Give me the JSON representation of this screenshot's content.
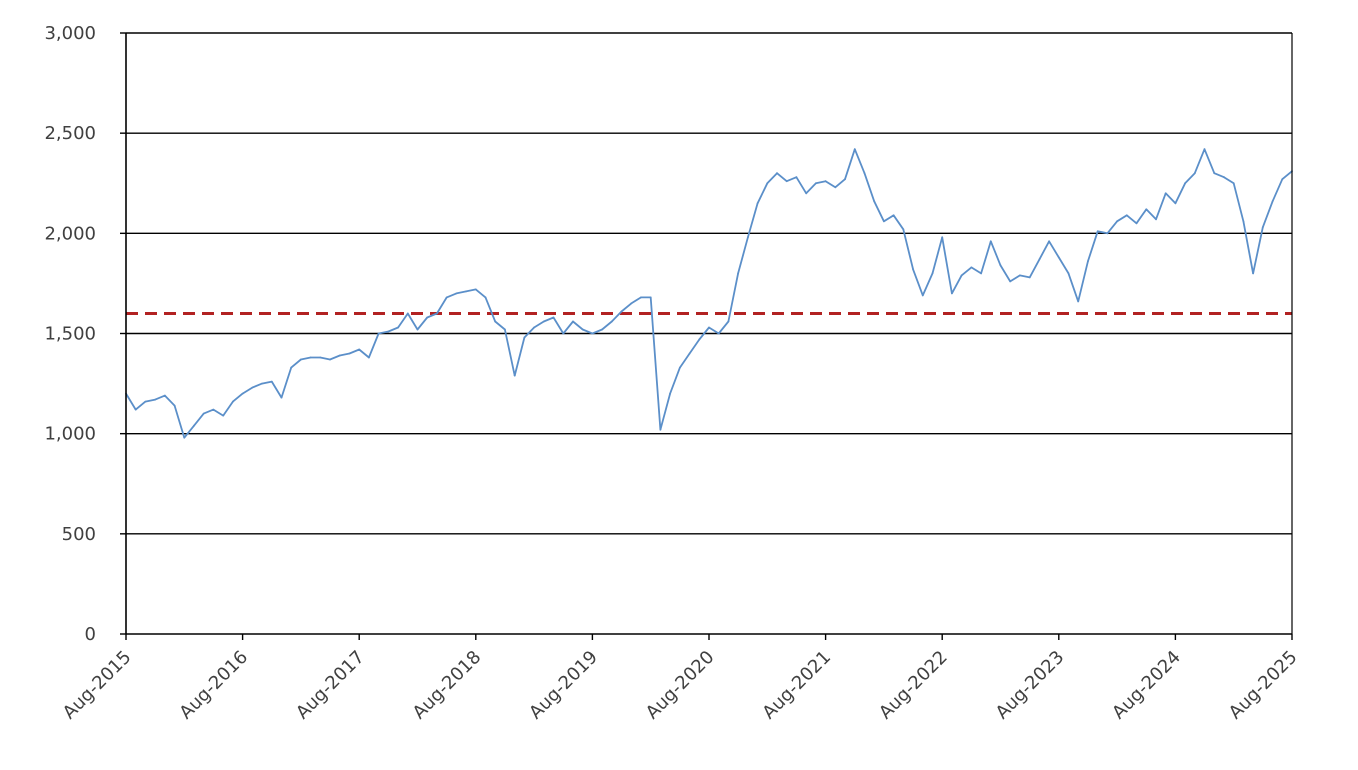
{
  "chart_data": {
    "type": "line",
    "title": "",
    "xlabel": "",
    "ylabel": "",
    "ylim": [
      0,
      3000
    ],
    "yticks": [
      0,
      500,
      1000,
      1500,
      2000,
      2500,
      3000
    ],
    "ytick_labels": [
      "0",
      "500",
      "1,000",
      "1,500",
      "2,000",
      "2,500",
      "3,000"
    ],
    "xlim": [
      "2015-08",
      "2025-08"
    ],
    "xtick_labels": [
      "Aug-2015",
      "Aug-2016",
      "Aug-2017",
      "Aug-2018",
      "Aug-2019",
      "Aug-2020",
      "Aug-2021",
      "Aug-2022",
      "Aug-2023",
      "Aug-2024",
      "Aug-2025"
    ],
    "grid": "horizontal",
    "legend": "none",
    "colors": {
      "series": "#5b8fc9",
      "reference": "#b22222",
      "grid": "#000000"
    },
    "reference_line": {
      "value": 1600,
      "style": "dashed"
    },
    "series": [
      {
        "points": [
          [
            "2015-08",
            1200
          ],
          [
            "2015-09",
            1120
          ],
          [
            "2015-10",
            1160
          ],
          [
            "2015-11",
            1170
          ],
          [
            "2015-12",
            1190
          ],
          [
            "2016-01",
            1140
          ],
          [
            "2016-02",
            980
          ],
          [
            "2016-03",
            1040
          ],
          [
            "2016-04",
            1100
          ],
          [
            "2016-05",
            1120
          ],
          [
            "2016-06",
            1090
          ],
          [
            "2016-07",
            1160
          ],
          [
            "2016-08",
            1200
          ],
          [
            "2016-09",
            1230
          ],
          [
            "2016-10",
            1250
          ],
          [
            "2016-11",
            1260
          ],
          [
            "2016-12",
            1180
          ],
          [
            "2017-01",
            1330
          ],
          [
            "2017-02",
            1370
          ],
          [
            "2017-03",
            1380
          ],
          [
            "2017-04",
            1380
          ],
          [
            "2017-05",
            1370
          ],
          [
            "2017-06",
            1390
          ],
          [
            "2017-07",
            1400
          ],
          [
            "2017-08",
            1420
          ],
          [
            "2017-09",
            1380
          ],
          [
            "2017-10",
            1500
          ],
          [
            "2017-11",
            1510
          ],
          [
            "2017-12",
            1530
          ],
          [
            "2018-01",
            1600
          ],
          [
            "2018-02",
            1520
          ],
          [
            "2018-03",
            1580
          ],
          [
            "2018-04",
            1600
          ],
          [
            "2018-05",
            1680
          ],
          [
            "2018-06",
            1700
          ],
          [
            "2018-07",
            1710
          ],
          [
            "2018-08",
            1720
          ],
          [
            "2018-09",
            1680
          ],
          [
            "2018-10",
            1560
          ],
          [
            "2018-11",
            1520
          ],
          [
            "2018-12",
            1290
          ],
          [
            "2019-01",
            1480
          ],
          [
            "2019-02",
            1530
          ],
          [
            "2019-03",
            1560
          ],
          [
            "2019-04",
            1580
          ],
          [
            "2019-05",
            1500
          ],
          [
            "2019-06",
            1560
          ],
          [
            "2019-07",
            1520
          ],
          [
            "2019-08",
            1500
          ],
          [
            "2019-09",
            1520
          ],
          [
            "2019-10",
            1560
          ],
          [
            "2019-11",
            1610
          ],
          [
            "2019-12",
            1650
          ],
          [
            "2020-01",
            1680
          ],
          [
            "2020-02",
            1680
          ],
          [
            "2020-03",
            1020
          ],
          [
            "2020-04",
            1200
          ],
          [
            "2020-05",
            1330
          ],
          [
            "2020-06",
            1400
          ],
          [
            "2020-07",
            1470
          ],
          [
            "2020-08",
            1530
          ],
          [
            "2020-09",
            1500
          ],
          [
            "2020-10",
            1560
          ],
          [
            "2020-11",
            1800
          ],
          [
            "2020-12",
            1980
          ],
          [
            "2021-01",
            2150
          ],
          [
            "2021-02",
            2250
          ],
          [
            "2021-03",
            2300
          ],
          [
            "2021-04",
            2260
          ],
          [
            "2021-05",
            2280
          ],
          [
            "2021-06",
            2200
          ],
          [
            "2021-07",
            2250
          ],
          [
            "2021-08",
            2260
          ],
          [
            "2021-09",
            2230
          ],
          [
            "2021-10",
            2270
          ],
          [
            "2021-11",
            2420
          ],
          [
            "2021-12",
            2300
          ],
          [
            "2022-01",
            2160
          ],
          [
            "2022-02",
            2060
          ],
          [
            "2022-03",
            2090
          ],
          [
            "2022-04",
            2020
          ],
          [
            "2022-05",
            1820
          ],
          [
            "2022-06",
            1690
          ],
          [
            "2022-07",
            1800
          ],
          [
            "2022-08",
            1980
          ],
          [
            "2022-09",
            1700
          ],
          [
            "2022-10",
            1790
          ],
          [
            "2022-11",
            1830
          ],
          [
            "2022-12",
            1800
          ],
          [
            "2023-01",
            1960
          ],
          [
            "2023-02",
            1840
          ],
          [
            "2023-03",
            1760
          ],
          [
            "2023-04",
            1790
          ],
          [
            "2023-05",
            1780
          ],
          [
            "2023-06",
            1870
          ],
          [
            "2023-07",
            1960
          ],
          [
            "2023-08",
            1880
          ],
          [
            "2023-09",
            1800
          ],
          [
            "2023-10",
            1660
          ],
          [
            "2023-11",
            1860
          ],
          [
            "2023-12",
            2010
          ],
          [
            "2024-01",
            2000
          ],
          [
            "2024-02",
            2060
          ],
          [
            "2024-03",
            2090
          ],
          [
            "2024-04",
            2050
          ],
          [
            "2024-05",
            2120
          ],
          [
            "2024-06",
            2070
          ],
          [
            "2024-07",
            2200
          ],
          [
            "2024-08",
            2150
          ],
          [
            "2024-09",
            2250
          ],
          [
            "2024-10",
            2300
          ],
          [
            "2024-11",
            2420
          ],
          [
            "2024-12",
            2300
          ],
          [
            "2025-01",
            2280
          ],
          [
            "2025-02",
            2250
          ],
          [
            "2025-03",
            2060
          ],
          [
            "2025-04",
            1800
          ],
          [
            "2025-05",
            2030
          ],
          [
            "2025-06",
            2160
          ],
          [
            "2025-07",
            2270
          ],
          [
            "2025-08",
            2310
          ]
        ]
      }
    ]
  }
}
